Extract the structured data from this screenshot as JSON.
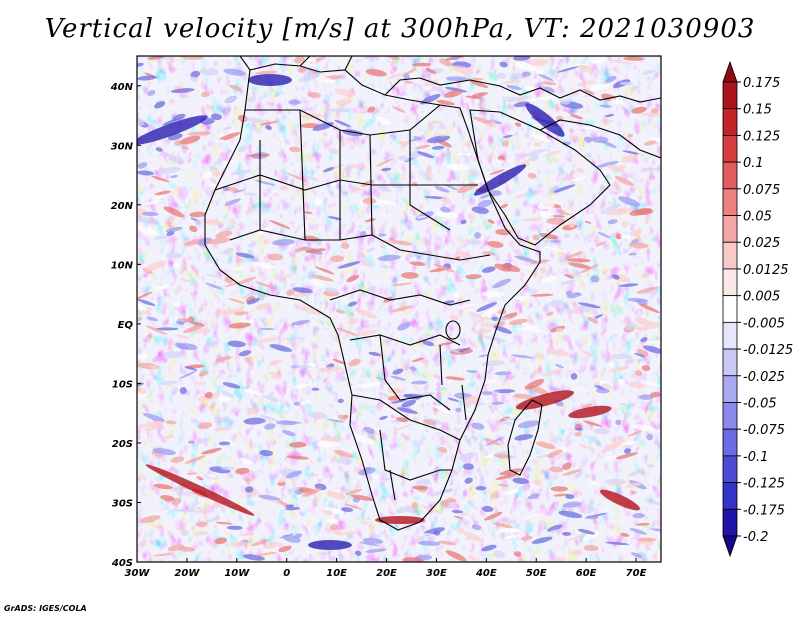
{
  "title": "Vertical velocity [m/s] at 300hPa, VT: 2021030903",
  "footer": "GrADS: IGES/COLA",
  "map": {
    "lon_range": [
      -30,
      75
    ],
    "lat_range": [
      -40,
      45
    ],
    "x_ticks": [
      {
        "value": -30,
        "label": "30W"
      },
      {
        "value": -20,
        "label": "20W"
      },
      {
        "value": -10,
        "label": "10W"
      },
      {
        "value": 0,
        "label": "0"
      },
      {
        "value": 10,
        "label": "10E"
      },
      {
        "value": 20,
        "label": "20E"
      },
      {
        "value": 30,
        "label": "30E"
      },
      {
        "value": 40,
        "label": "40E"
      },
      {
        "value": 50,
        "label": "50E"
      },
      {
        "value": 60,
        "label": "60E"
      },
      {
        "value": 70,
        "label": "70E"
      }
    ],
    "y_ticks": [
      {
        "value": 40,
        "label": "40N"
      },
      {
        "value": 30,
        "label": "30N"
      },
      {
        "value": 20,
        "label": "20N"
      },
      {
        "value": 10,
        "label": "10N"
      },
      {
        "value": 0,
        "label": "EQ"
      },
      {
        "value": -10,
        "label": "10S"
      },
      {
        "value": -20,
        "label": "20S"
      },
      {
        "value": -30,
        "label": "30S"
      },
      {
        "value": -40,
        "label": "40S"
      }
    ],
    "colors": {
      "up_strong": "#b3121c",
      "up_weak": "#f08a8a",
      "neutral": "#ffffff",
      "down_weak": "#8f8ff2",
      "down_strong": "#2b1fb0",
      "coastline": "#000000"
    }
  },
  "colorbar": {
    "levels": [
      "0.175",
      "0.15",
      "0.125",
      "0.1",
      "0.075",
      "0.05",
      "0.025",
      "0.0125",
      "0.005",
      "-0.005",
      "-0.0125",
      "-0.025",
      "-0.05",
      "-0.075",
      "-0.1",
      "-0.125",
      "-0.175",
      "-0.2"
    ],
    "colors": [
      "#8e0b10",
      "#ab141b",
      "#c4232a",
      "#d63c40",
      "#e25d5e",
      "#ec8280",
      "#f4a6a4",
      "#f9c9c8",
      "#fde8e8",
      "#ffffff",
      "#e6e6fb",
      "#c9c9f6",
      "#a9a9f0",
      "#8a8aea",
      "#6b6be3",
      "#4b4bd8",
      "#3333c7",
      "#2214a8",
      "#140a88"
    ]
  }
}
